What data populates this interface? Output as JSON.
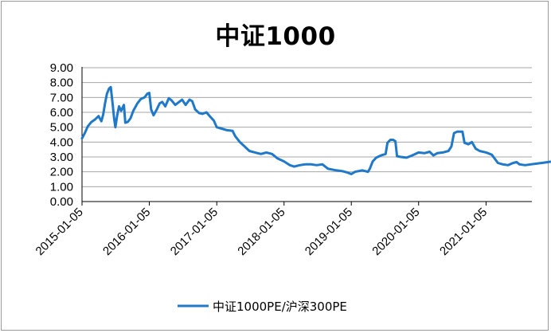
{
  "chart_data": {
    "type": "line",
    "title": "中证1000",
    "xlabel": "",
    "ylabel": "",
    "ylim": [
      0,
      9
    ],
    "y_ticks": [
      "0.00",
      "1.00",
      "2.00",
      "3.00",
      "4.00",
      "5.00",
      "6.00",
      "7.00",
      "8.00",
      "9.00"
    ],
    "x_ticks": [
      "2015-01-05",
      "2016-01-05",
      "2017-01-05",
      "2018-01-05",
      "2019-01-05",
      "2020-01-05",
      "2021-01-05"
    ],
    "grid": "horizontal",
    "legend_position": "bottom",
    "colors": {
      "series": "#1f78c8",
      "grid": "#a6a6a6",
      "axis": "#000000"
    },
    "series": [
      {
        "name": "中证1000PE/沪深300PE",
        "points": [
          [
            "2015-01-05",
            4.25
          ],
          [
            "2015-01-20",
            4.6
          ],
          [
            "2015-02-05",
            5.05
          ],
          [
            "2015-02-25",
            5.35
          ],
          [
            "2015-03-15",
            5.5
          ],
          [
            "2015-04-05",
            5.75
          ],
          [
            "2015-04-20",
            5.4
          ],
          [
            "2015-04-30",
            5.85
          ],
          [
            "2015-05-10",
            6.6
          ],
          [
            "2015-05-20",
            7.25
          ],
          [
            "2015-06-01",
            7.6
          ],
          [
            "2015-06-10",
            7.7
          ],
          [
            "2015-06-20",
            6.6
          ],
          [
            "2015-06-28",
            5.6
          ],
          [
            "2015-07-05",
            5.0
          ],
          [
            "2015-07-15",
            5.8
          ],
          [
            "2015-07-25",
            6.4
          ],
          [
            "2015-08-05",
            6.1
          ],
          [
            "2015-08-20",
            6.5
          ],
          [
            "2015-08-28",
            5.3
          ],
          [
            "2015-09-10",
            5.35
          ],
          [
            "2015-09-25",
            5.6
          ],
          [
            "2015-10-10",
            6.1
          ],
          [
            "2015-11-01",
            6.6
          ],
          [
            "2015-11-20",
            6.9
          ],
          [
            "2015-12-10",
            7.0
          ],
          [
            "2015-12-25",
            7.25
          ],
          [
            "2016-01-05",
            7.3
          ],
          [
            "2016-01-15",
            6.2
          ],
          [
            "2016-01-28",
            5.8
          ],
          [
            "2016-02-15",
            6.2
          ],
          [
            "2016-03-01",
            6.6
          ],
          [
            "2016-03-15",
            6.7
          ],
          [
            "2016-04-01",
            6.4
          ],
          [
            "2016-04-20",
            6.95
          ],
          [
            "2016-05-05",
            6.8
          ],
          [
            "2016-05-25",
            6.5
          ],
          [
            "2016-06-15",
            6.7
          ],
          [
            "2016-07-01",
            6.85
          ],
          [
            "2016-07-20",
            6.5
          ],
          [
            "2016-08-10",
            6.85
          ],
          [
            "2016-08-25",
            6.75
          ],
          [
            "2016-09-10",
            6.2
          ],
          [
            "2016-10-01",
            5.95
          ],
          [
            "2016-10-20",
            5.9
          ],
          [
            "2016-11-10",
            6.0
          ],
          [
            "2016-12-01",
            5.7
          ],
          [
            "2016-12-20",
            5.45
          ],
          [
            "2017-01-05",
            5.0
          ],
          [
            "2017-02-01",
            4.9
          ],
          [
            "2017-03-01",
            4.8
          ],
          [
            "2017-04-01",
            4.75
          ],
          [
            "2017-04-15",
            4.4
          ],
          [
            "2017-05-10",
            4.0
          ],
          [
            "2017-06-01",
            3.75
          ],
          [
            "2017-07-01",
            3.4
          ],
          [
            "2017-08-01",
            3.3
          ],
          [
            "2017-09-01",
            3.2
          ],
          [
            "2017-10-01",
            3.3
          ],
          [
            "2017-11-01",
            3.2
          ],
          [
            "2017-12-01",
            2.9
          ],
          [
            "2018-01-05",
            2.7
          ],
          [
            "2018-02-05",
            2.45
          ],
          [
            "2018-03-01",
            2.35
          ],
          [
            "2018-04-01",
            2.45
          ],
          [
            "2018-05-01",
            2.5
          ],
          [
            "2018-06-01",
            2.5
          ],
          [
            "2018-07-01",
            2.45
          ],
          [
            "2018-08-01",
            2.5
          ],
          [
            "2018-09-01",
            2.2
          ],
          [
            "2018-10-15",
            2.1
          ],
          [
            "2018-11-15",
            2.05
          ],
          [
            "2018-12-15",
            1.95
          ],
          [
            "2019-01-05",
            1.85
          ],
          [
            "2019-01-25",
            2.0
          ],
          [
            "2019-02-15",
            2.05
          ],
          [
            "2019-03-05",
            2.1
          ],
          [
            "2019-03-20",
            2.05
          ],
          [
            "2019-04-05",
            2.0
          ],
          [
            "2019-04-15",
            2.2
          ],
          [
            "2019-05-01",
            2.7
          ],
          [
            "2019-05-20",
            2.95
          ],
          [
            "2019-06-15",
            3.1
          ],
          [
            "2019-07-10",
            3.2
          ],
          [
            "2019-07-20",
            3.95
          ],
          [
            "2019-08-05",
            4.15
          ],
          [
            "2019-08-20",
            4.15
          ],
          [
            "2019-09-01",
            4.05
          ],
          [
            "2019-09-10",
            3.05
          ],
          [
            "2019-10-01",
            3.0
          ],
          [
            "2019-11-01",
            2.95
          ],
          [
            "2019-12-01",
            3.1
          ],
          [
            "2020-01-05",
            3.3
          ],
          [
            "2020-02-05",
            3.25
          ],
          [
            "2020-03-05",
            3.35
          ],
          [
            "2020-03-25",
            3.1
          ],
          [
            "2020-04-15",
            3.25
          ],
          [
            "2020-05-15",
            3.3
          ],
          [
            "2020-06-15",
            3.4
          ],
          [
            "2020-07-01",
            3.7
          ],
          [
            "2020-07-15",
            4.6
          ],
          [
            "2020-08-01",
            4.7
          ],
          [
            "2020-08-30",
            4.7
          ],
          [
            "2020-09-10",
            3.95
          ],
          [
            "2020-10-01",
            3.85
          ],
          [
            "2020-10-20",
            4.0
          ],
          [
            "2020-11-10",
            3.55
          ],
          [
            "2020-12-01",
            3.4
          ],
          [
            "2021-01-05",
            3.3
          ],
          [
            "2021-02-05",
            3.15
          ],
          [
            "2021-02-20",
            2.9
          ],
          [
            "2021-03-10",
            2.6
          ],
          [
            "2021-04-05",
            2.5
          ],
          [
            "2021-05-05",
            2.45
          ],
          [
            "2021-06-01",
            2.6
          ],
          [
            "2021-06-20",
            2.65
          ],
          [
            "2021-07-05",
            2.5
          ],
          [
            "2021-08-05",
            2.45
          ],
          [
            "2021-09-05",
            2.5
          ],
          [
            "2021-10-05",
            2.55
          ],
          [
            "2021-11-05",
            2.6
          ],
          [
            "2021-12-05",
            2.65
          ],
          [
            "2021-12-31",
            2.7
          ]
        ]
      }
    ]
  }
}
